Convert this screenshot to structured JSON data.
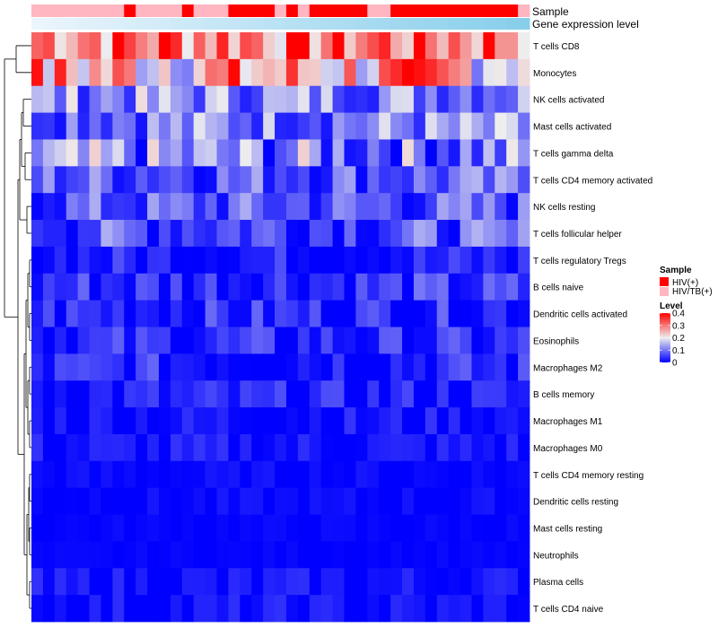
{
  "chart_data": {
    "type": "heatmap",
    "annotation_labels": [
      "Sample",
      "Gene expression level"
    ],
    "rows": [
      "T cells CD8",
      "Monocytes",
      "NK cells activated",
      "Mast cells activated",
      "T cells gamma delta",
      "T cells CD4 memory activated",
      "NK cells resting",
      "T cells follicular helper",
      "T cells regulatory  Tregs",
      "B cells naive",
      "Dendritic cells activated",
      "Eosinophils",
      "Macrophages M2",
      "B cells memory",
      "Macrophages M1",
      "Macrophages M0",
      "T cells CD4 memory resting",
      "Dendritic cells resting",
      "Mast cells resting",
      "Neutrophils",
      "Plasma cells",
      "T cells CD4 naive"
    ],
    "n_columns": 43,
    "sample_groups": [
      "HIV/TB(+)",
      "HIV/TB(+)",
      "HIV/TB(+)",
      "HIV/TB(+)",
      "HIV/TB(+)",
      "HIV/TB(+)",
      "HIV/TB(+)",
      "HIV/TB(+)",
      "HIV(+)",
      "HIV/TB(+)",
      "HIV/TB(+)",
      "HIV/TB(+)",
      "HIV/TB(+)",
      "HIV(+)",
      "HIV/TB(+)",
      "HIV/TB(+)",
      "HIV/TB(+)",
      "HIV(+)",
      "HIV(+)",
      "HIV(+)",
      "HIV(+)",
      "HIV/TB(+)",
      "HIV(+)",
      "HIV/TB(+)",
      "HIV(+)",
      "HIV(+)",
      "HIV(+)",
      "HIV(+)",
      "HIV(+)",
      "HIV/TB(+)",
      "HIV/TB(+)",
      "HIV(+)",
      "HIV(+)",
      "HIV(+)",
      "HIV(+)",
      "HIV(+)",
      "HIV(+)",
      "HIV(+)",
      "HIV(+)",
      "HIV(+)",
      "HIV(+)",
      "HIV(+)",
      "HIV/TB(+)"
    ],
    "row_means": [
      0.32,
      0.25,
      0.12,
      0.11,
      0.1,
      0.08,
      0.07,
      0.07,
      0.025,
      0.04,
      0.035,
      0.03,
      0.03,
      0.02,
      0.015,
      0.015,
      0.005,
      0.005,
      0.003,
      0.002,
      0.01,
      0.01
    ],
    "row_spreads": [
      0.09,
      0.1,
      0.06,
      0.06,
      0.08,
      0.05,
      0.05,
      0.05,
      0.03,
      0.04,
      0.035,
      0.035,
      0.035,
      0.03,
      0.02,
      0.02,
      0.01,
      0.01,
      0.005,
      0.004,
      0.02,
      0.02
    ],
    "color_scale": {
      "min": 0,
      "mid": 0.2,
      "max": 0.4,
      "low_color": "#0000ff",
      "mid_color": "#eeeeee",
      "high_color": "#ff0000"
    },
    "expression_color": "#87ceeb",
    "legend": {
      "sample_title": "Sample",
      "sample_entries": [
        {
          "label": "HIV(+)",
          "color": "#ff0000"
        },
        {
          "label": "HIV/TB(+)",
          "color": "#ffb6c1"
        }
      ],
      "level_title": "Level",
      "level_ticks": [
        {
          "value": 0.4,
          "label": "0.4"
        },
        {
          "value": 0.3,
          "label": "0.3"
        },
        {
          "value": 0.2,
          "label": "0.2"
        },
        {
          "value": 0.1,
          "label": "0.1"
        },
        {
          "value": 0,
          "label": "0"
        }
      ],
      "placement": "right"
    }
  }
}
